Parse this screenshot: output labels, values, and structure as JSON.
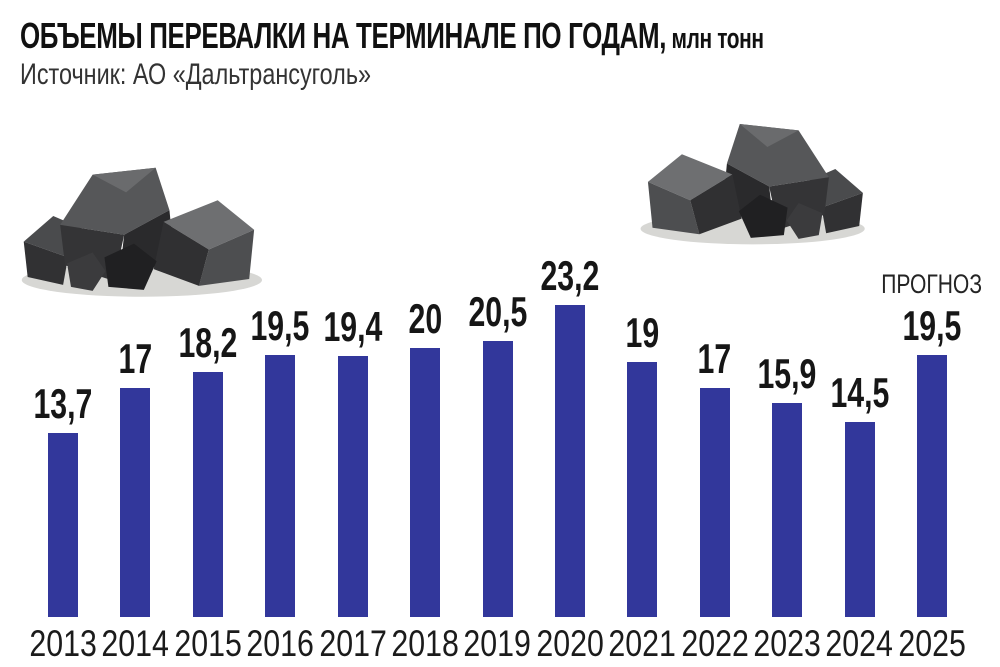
{
  "header": {
    "title": "ОБЪЕМЫ ПЕРЕВАЛКИ НА ТЕРМИНАЛЕ ПО ГОДАМ,",
    "title_unit": " млн тонн",
    "source": "Источник: АО «Дальтрансуголь»"
  },
  "chart_data": {
    "type": "bar",
    "title": "ОБЪЕМЫ ПЕРЕВАЛКИ НА ТЕРМИНАЛЕ ПО ГОДАМ, млн тонн",
    "source": "Источник: АО «Дальтрансуголь»",
    "categories": [
      "2013",
      "2014",
      "2015",
      "2016",
      "2017",
      "2018",
      "2019",
      "2020",
      "2021",
      "2022",
      "2023",
      "2024",
      "2025"
    ],
    "values": [
      13.7,
      17,
      18.2,
      19.5,
      19.4,
      20,
      20.5,
      23.2,
      19,
      17,
      15.9,
      14.5,
      19.5
    ],
    "value_labels": [
      "13,7",
      "17",
      "18,2",
      "19,5",
      "19,4",
      "20",
      "20,5",
      "23,2",
      "19",
      "17",
      "15,9",
      "14,5",
      "19,5"
    ],
    "forecast_label": "ПРОГНОЗ",
    "forecast_index": 12,
    "bar_color": "#32379B",
    "value_label_color": "#161616",
    "axis_label_color": "#1b1b1b",
    "xlabel": "",
    "ylabel": "млн тонн",
    "ylim": [
      0,
      24
    ],
    "grid": false,
    "legend": "none",
    "data_labels": "above bars",
    "notes": "2025 is a forecast value"
  },
  "illustrations": {
    "left": "coal-pile",
    "right": "coal-pile"
  }
}
